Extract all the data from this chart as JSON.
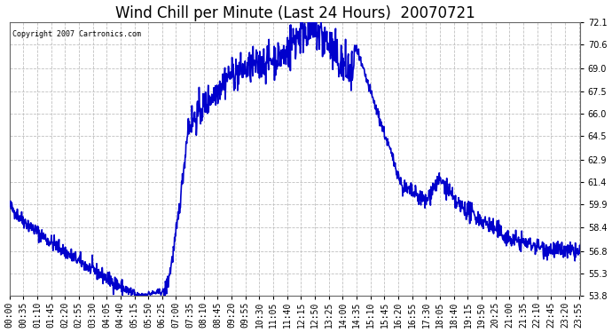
{
  "title": "Wind Chill per Minute (Last 24 Hours)  20070721",
  "copyright_text": "Copyright 2007 Cartronics.com",
  "line_color": "#0000CC",
  "background_color": "#ffffff",
  "grid_color": "#c0c0c0",
  "ylim": [
    53.8,
    72.1
  ],
  "yticks": [
    53.8,
    55.3,
    56.8,
    58.4,
    59.9,
    61.4,
    62.9,
    64.5,
    66.0,
    67.5,
    69.0,
    70.6,
    72.1
  ],
  "title_fontsize": 12,
  "tick_label_fontsize": 7,
  "line_width": 1.2,
  "xtick_labels": [
    "00:00",
    "00:35",
    "01:10",
    "01:45",
    "02:20",
    "02:55",
    "03:30",
    "04:05",
    "04:40",
    "05:15",
    "05:50",
    "06:25",
    "07:00",
    "07:35",
    "08:10",
    "08:45",
    "09:20",
    "09:55",
    "10:30",
    "11:05",
    "11:40",
    "12:15",
    "12:50",
    "13:25",
    "14:00",
    "14:35",
    "15:10",
    "15:45",
    "16:20",
    "16:55",
    "17:30",
    "18:05",
    "18:40",
    "19:15",
    "19:50",
    "20:25",
    "21:00",
    "21:35",
    "22:10",
    "22:45",
    "23:20",
    "23:55"
  ],
  "figsize": [
    6.9,
    3.75
  ],
  "dpi": 100
}
